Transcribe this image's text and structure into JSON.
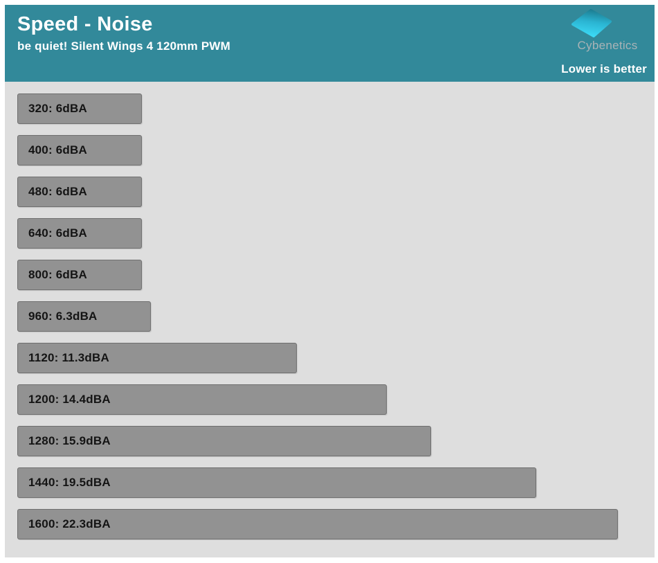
{
  "header": {
    "title": "Speed - Noise",
    "subtitle": "be quiet! Silent Wings 4 120mm PWM",
    "brand": "Cybenetics",
    "note": "Lower is better",
    "bg_color": "#32899A",
    "diamond_top_color": "#1d7e92",
    "diamond_bottom_color": "#3cdaf6"
  },
  "chart_data": {
    "type": "bar",
    "orientation": "horizontal",
    "title": "Speed - Noise",
    "subtitle": "be quiet! Silent Wings 4 120mm PWM",
    "annotation": "Lower is better",
    "unit": "dBA",
    "categories": [
      "320",
      "400",
      "480",
      "640",
      "800",
      "960",
      "1120",
      "1200",
      "1280",
      "1440",
      "1600"
    ],
    "values": [
      6,
      6,
      6,
      6,
      6,
      6.3,
      11.3,
      14.4,
      15.9,
      19.5,
      22.3
    ],
    "labels": [
      "320: 6dBA",
      "400: 6dBA",
      "480: 6dBA",
      "640: 6dBA",
      "800: 6dBA",
      "960: 6.3dBA",
      "1120: 11.3dBA",
      "1200: 14.4dBA",
      "1280: 15.9dBA",
      "1440: 19.5dBA",
      "1600: 22.3dBA"
    ],
    "grid": false,
    "legend": false,
    "bar_color": "#929292",
    "bar_border_color": "#6f6f6f",
    "background": "#dedede"
  }
}
